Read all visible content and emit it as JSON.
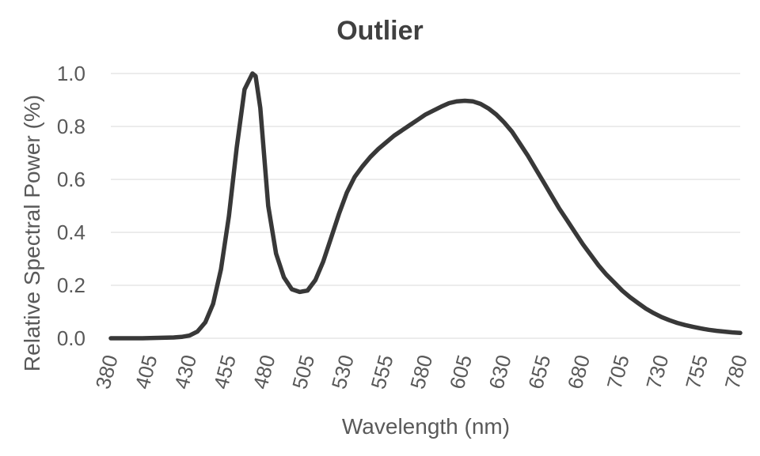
{
  "chart_data": {
    "type": "line",
    "title": "Outlier",
    "xlabel": "Wavelength (nm)",
    "ylabel": "Relative Spectral Power (%)",
    "xlim": [
      380,
      780
    ],
    "ylim": [
      0,
      1.0
    ],
    "grid": true,
    "legend": "none",
    "x_ticks": [
      "380",
      "405",
      "430",
      "455",
      "480",
      "505",
      "530",
      "555",
      "580",
      "605",
      "630",
      "655",
      "680",
      "705",
      "730",
      "755",
      "780"
    ],
    "y_ticks": [
      "0.0",
      "0.2",
      "0.4",
      "0.6",
      "0.8",
      "1.0"
    ],
    "series_color": "#383838",
    "series": [
      {
        "x": [
          380,
          400,
          420,
          425,
          430,
          435,
          440,
          445,
          450,
          455,
          460,
          465,
          470,
          472,
          475,
          480,
          485,
          490,
          495,
          500,
          505,
          510,
          515,
          520,
          525,
          530,
          535,
          540,
          545,
          550,
          555,
          560,
          565,
          570,
          575,
          580,
          585,
          590,
          595,
          600,
          605,
          610,
          615,
          620,
          625,
          630,
          635,
          640,
          645,
          650,
          655,
          660,
          665,
          670,
          675,
          680,
          685,
          690,
          695,
          700,
          705,
          710,
          715,
          720,
          725,
          730,
          735,
          740,
          745,
          750,
          755,
          760,
          765,
          770,
          775,
          780
        ],
        "y": [
          0.0,
          0.0,
          0.003,
          0.005,
          0.01,
          0.025,
          0.06,
          0.13,
          0.26,
          0.46,
          0.72,
          0.94,
          1.0,
          0.99,
          0.87,
          0.5,
          0.32,
          0.23,
          0.185,
          0.175,
          0.18,
          0.22,
          0.29,
          0.38,
          0.47,
          0.55,
          0.61,
          0.65,
          0.685,
          0.715,
          0.74,
          0.765,
          0.785,
          0.805,
          0.825,
          0.845,
          0.86,
          0.875,
          0.888,
          0.895,
          0.897,
          0.895,
          0.885,
          0.868,
          0.845,
          0.815,
          0.78,
          0.735,
          0.69,
          0.64,
          0.59,
          0.54,
          0.49,
          0.445,
          0.4,
          0.355,
          0.315,
          0.275,
          0.24,
          0.21,
          0.18,
          0.155,
          0.133,
          0.112,
          0.095,
          0.08,
          0.068,
          0.058,
          0.05,
          0.043,
          0.037,
          0.032,
          0.028,
          0.025,
          0.022,
          0.02
        ]
      }
    ]
  }
}
